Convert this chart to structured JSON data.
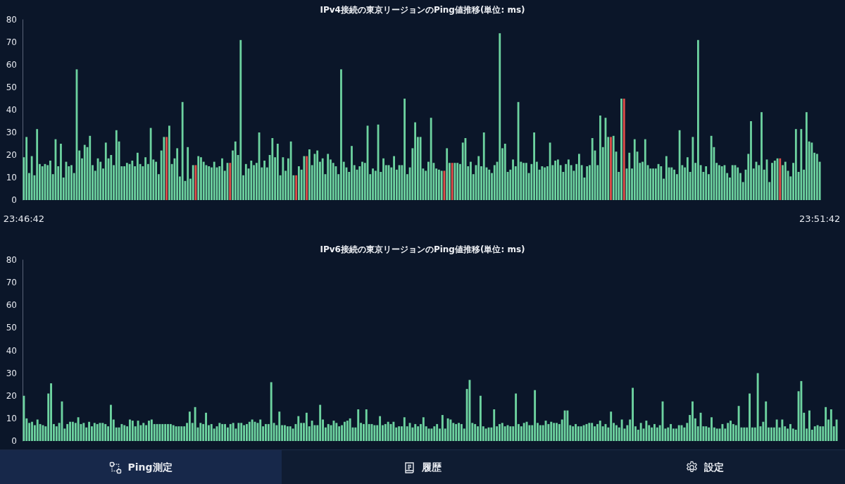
{
  "chart_data": [
    {
      "type": "bar",
      "title": "IPv4接続の東京リージョンのPing値推移(単位: ms)",
      "categories": [
        "23:46:42",
        null,
        null,
        null,
        null,
        null,
        null,
        null,
        null,
        null,
        null,
        null,
        null,
        null,
        null,
        null,
        null,
        null,
        null,
        null,
        null,
        null,
        null,
        null,
        null,
        null,
        null,
        null,
        null,
        null,
        null,
        null,
        null,
        null,
        null,
        null,
        null,
        null,
        null,
        null,
        null,
        null,
        null,
        null,
        null,
        null,
        null,
        null,
        null,
        null,
        null,
        null,
        null,
        null,
        null,
        null,
        null,
        null,
        null,
        null,
        null,
        null,
        null,
        null,
        null,
        null,
        null,
        null,
        null,
        null,
        null,
        null,
        null,
        null,
        null,
        null,
        null,
        null,
        null,
        null,
        null,
        null,
        null,
        null,
        null,
        null,
        null,
        null,
        null,
        null,
        null,
        null,
        null,
        null,
        null,
        null,
        null,
        null,
        null,
        null,
        null,
        null,
        null,
        null,
        null,
        null,
        null,
        null,
        null,
        null,
        null,
        null,
        null,
        null,
        null,
        null,
        null,
        null,
        null,
        null,
        null,
        null,
        null,
        null,
        null,
        null,
        null,
        null,
        null,
        null,
        null,
        null,
        null,
        null,
        null,
        null,
        null,
        null,
        null,
        null,
        null,
        null,
        null,
        null,
        null,
        null,
        null,
        null,
        null,
        null,
        null,
        null,
        null,
        null,
        null,
        null,
        null,
        null,
        null,
        null,
        null,
        null,
        null,
        null,
        null,
        null,
        null,
        null,
        null,
        null,
        null,
        null,
        null,
        null,
        null,
        null,
        null,
        null,
        null,
        null,
        null,
        null,
        null,
        null,
        null,
        null,
        null,
        null,
        null,
        null,
        null,
        null,
        null,
        null,
        null,
        null,
        null,
        null,
        null,
        null,
        null,
        null,
        null,
        null,
        null,
        null,
        null,
        null,
        null,
        null,
        null,
        null,
        null,
        null,
        null,
        null,
        null,
        null,
        null,
        null,
        null,
        null,
        null,
        null,
        null,
        null,
        null,
        null,
        null,
        null,
        null,
        null,
        null,
        null,
        null,
        null,
        null,
        null,
        null,
        null,
        null,
        null,
        null,
        null,
        null,
        null,
        null,
        null,
        null,
        null,
        null,
        null,
        null,
        null,
        null,
        null,
        null,
        null,
        null,
        null,
        null,
        null,
        null,
        null,
        null,
        null,
        null,
        null,
        null,
        null,
        null,
        null,
        null,
        null,
        null,
        null,
        null,
        null,
        null,
        null,
        null,
        null,
        null,
        null,
        null,
        null,
        null,
        null,
        null,
        null,
        null,
        null,
        null,
        null,
        null,
        null,
        null,
        null,
        null,
        null,
        null,
        "23:51:42"
      ],
      "values": [
        19,
        28,
        12,
        19.5,
        11,
        31.5,
        16,
        15,
        16,
        15.5,
        17.5,
        11.5,
        27,
        15,
        25,
        10,
        17,
        15,
        15.5,
        12,
        58,
        22,
        18.5,
        24.5,
        23.5,
        28.5,
        15.5,
        13,
        18.5,
        17,
        14,
        25.5,
        18.5,
        20,
        15.5,
        31,
        26,
        15,
        15,
        16.5,
        16,
        17.5,
        15,
        21,
        16,
        15,
        19,
        16,
        32,
        18,
        17,
        11.5,
        22,
        28,
        28,
        33,
        16,
        18.5,
        23,
        10.5,
        43.5,
        8.5,
        23.5,
        9.5,
        15.5,
        15.5,
        19.5,
        19,
        17,
        15.5,
        15,
        14.5,
        17,
        14.5,
        15,
        18.5,
        13,
        16.5,
        16.5,
        22,
        26,
        20,
        71,
        11,
        16,
        14,
        17.5,
        15.5,
        16.5,
        30,
        14.5,
        17.5,
        14.5,
        20,
        27.5,
        19,
        25,
        11,
        19,
        13,
        18.5,
        26,
        11,
        11,
        15,
        13.5,
        19.5,
        19.5,
        22.5,
        15.5,
        20.5,
        22,
        17,
        18.5,
        11.5,
        20.5,
        18,
        16.5,
        15,
        11.5,
        58,
        17,
        14.5,
        12.5,
        24,
        15.5,
        13.5,
        15,
        17,
        16.5,
        33,
        11.5,
        14,
        13,
        33.5,
        12.5,
        18.5,
        15.5,
        15.5,
        14.5,
        19.5,
        13.5,
        15.5,
        15.5,
        45,
        11.5,
        14.5,
        23,
        34.5,
        28,
        28,
        14,
        13,
        17,
        36.5,
        16.5,
        14,
        13.5,
        13,
        13,
        23,
        16.5,
        16.5,
        16.5,
        16.5,
        16,
        25.5,
        27.5,
        15,
        17,
        11.5,
        15.5,
        19.5,
        15,
        30,
        14.5,
        13.5,
        12,
        15.5,
        17,
        74,
        23,
        25,
        12.5,
        13.5,
        18,
        15,
        43.5,
        17,
        16.5,
        16.5,
        12,
        16,
        30,
        17,
        13.5,
        15,
        14.5,
        15,
        25.5,
        15.5,
        17.5,
        18,
        15.5,
        12.5,
        16,
        18,
        15.5,
        13,
        16,
        20.5,
        15.5,
        10,
        15,
        15.5,
        27.5,
        22,
        15.5,
        37.5,
        23.5,
        36.5,
        28,
        28,
        28.5,
        21.5,
        12.5,
        45,
        45,
        14,
        21,
        14,
        27,
        21.5,
        16.5,
        17,
        27,
        15.5,
        14,
        14,
        14,
        16,
        15,
        9.5,
        19.5,
        14.5,
        14.5,
        13.5,
        11.5,
        31,
        15.5,
        14.5,
        19,
        12.5,
        28,
        16.5,
        71,
        15.5,
        12.5,
        15,
        11.5,
        28.5,
        23.5,
        16.5,
        15.5,
        15,
        15.5,
        12,
        10,
        15.5,
        15.5,
        14.5,
        12,
        8,
        13.5,
        20.5,
        35,
        14,
        17,
        15.5,
        39,
        13.5,
        18,
        8,
        16.5,
        17.5,
        18.5,
        18.5,
        15.5,
        17,
        13,
        10.5,
        16.5,
        31.5,
        12.5,
        31.5,
        13.5,
        39,
        26,
        25.5,
        21,
        20.5,
        17
      ],
      "colors": [
        "#6dd3a0",
        "#6dd3a0",
        "#6dd3a0",
        "#6dd3a0",
        "#6dd3a0",
        "#6dd3a0",
        "#6dd3a0",
        "#6dd3a0",
        "#6dd3a0",
        "#6dd3a0",
        "#6dd3a0",
        "#6dd3a0",
        "#6dd3a0",
        "#6dd3a0",
        "#6dd3a0",
        "#6dd3a0",
        "#6dd3a0",
        "#6dd3a0",
        "#6dd3a0",
        "#6dd3a0",
        "#6dd3a0",
        "#6dd3a0",
        "#6dd3a0",
        "#6dd3a0",
        "#6dd3a0",
        "#6dd3a0",
        "#6dd3a0",
        "#6dd3a0",
        "#6dd3a0",
        "#6dd3a0",
        "#6dd3a0",
        "#6dd3a0",
        "#6dd3a0",
        "#6dd3a0",
        "#6dd3a0",
        "#6dd3a0",
        "#6dd3a0",
        "#6dd3a0",
        "#6dd3a0",
        "#6dd3a0",
        "#6dd3a0",
        "#6dd3a0",
        "#6dd3a0",
        "#6dd3a0",
        "#6dd3a0",
        "#6dd3a0",
        "#6dd3a0",
        "#6dd3a0",
        "#6dd3a0",
        "#6dd3a0",
        "#6dd3a0",
        "#6dd3a0",
        "#6dd3a0",
        "#6dd3a0",
        "#e0504a",
        "#6dd3a0",
        "#6dd3a0",
        "#6dd3a0",
        "#6dd3a0",
        "#6dd3a0",
        "#6dd3a0",
        "#6dd3a0",
        "#6dd3a0",
        "#6dd3a0",
        "#6dd3a0",
        "#e0504a",
        "#6dd3a0",
        "#6dd3a0",
        "#6dd3a0",
        "#6dd3a0",
        "#6dd3a0",
        "#6dd3a0",
        "#6dd3a0",
        "#6dd3a0",
        "#6dd3a0",
        "#6dd3a0",
        "#6dd3a0",
        "#6dd3a0",
        "#e0504a",
        "#6dd3a0",
        "#6dd3a0",
        "#6dd3a0",
        "#6dd3a0",
        "#6dd3a0",
        "#6dd3a0",
        "#6dd3a0",
        "#6dd3a0",
        "#6dd3a0",
        "#6dd3a0",
        "#6dd3a0",
        "#6dd3a0",
        "#6dd3a0",
        "#6dd3a0",
        "#6dd3a0",
        "#6dd3a0",
        "#6dd3a0",
        "#6dd3a0",
        "#6dd3a0",
        "#6dd3a0",
        "#6dd3a0",
        "#6dd3a0",
        "#6dd3a0",
        "#6dd3a0",
        "#e0504a",
        "#6dd3a0",
        "#6dd3a0",
        "#6dd3a0",
        "#e0504a",
        "#6dd3a0",
        "#6dd3a0",
        "#6dd3a0",
        "#6dd3a0",
        "#6dd3a0",
        "#6dd3a0",
        "#6dd3a0",
        "#6dd3a0",
        "#6dd3a0",
        "#6dd3a0",
        "#6dd3a0",
        "#6dd3a0",
        "#6dd3a0",
        "#6dd3a0",
        "#6dd3a0",
        "#6dd3a0",
        "#6dd3a0",
        "#6dd3a0",
        "#6dd3a0",
        "#6dd3a0",
        "#6dd3a0",
        "#6dd3a0",
        "#6dd3a0",
        "#6dd3a0",
        "#6dd3a0",
        "#6dd3a0",
        "#6dd3a0",
        "#6dd3a0",
        "#6dd3a0",
        "#6dd3a0",
        "#6dd3a0",
        "#6dd3a0",
        "#6dd3a0",
        "#6dd3a0",
        "#6dd3a0",
        "#6dd3a0",
        "#6dd3a0",
        "#6dd3a0",
        "#6dd3a0",
        "#6dd3a0",
        "#6dd3a0",
        "#6dd3a0",
        "#6dd3a0",
        "#6dd3a0",
        "#6dd3a0",
        "#6dd3a0",
        "#6dd3a0",
        "#6dd3a0",
        "#6dd3a0",
        "#6dd3a0",
        "#6dd3a0",
        "#e0504a",
        "#6dd3a0",
        "#6dd3a0",
        "#e0504a",
        "#6dd3a0",
        "#6dd3a0",
        "#6dd3a0",
        "#6dd3a0",
        "#6dd3a0",
        "#6dd3a0",
        "#6dd3a0",
        "#6dd3a0",
        "#6dd3a0",
        "#6dd3a0",
        "#6dd3a0",
        "#6dd3a0",
        "#6dd3a0",
        "#6dd3a0",
        "#6dd3a0",
        "#6dd3a0",
        "#6dd3a0",
        "#6dd3a0",
        "#6dd3a0",
        "#6dd3a0",
        "#6dd3a0",
        "#6dd3a0",
        "#6dd3a0",
        "#6dd3a0",
        "#6dd3a0",
        "#6dd3a0",
        "#6dd3a0",
        "#6dd3a0",
        "#6dd3a0",
        "#6dd3a0",
        "#6dd3a0",
        "#6dd3a0",
        "#6dd3a0",
        "#6dd3a0",
        "#6dd3a0",
        "#6dd3a0",
        "#6dd3a0",
        "#6dd3a0",
        "#6dd3a0",
        "#6dd3a0",
        "#6dd3a0",
        "#6dd3a0",
        "#6dd3a0",
        "#6dd3a0",
        "#6dd3a0",
        "#6dd3a0",
        "#6dd3a0",
        "#6dd3a0",
        "#6dd3a0",
        "#6dd3a0",
        "#6dd3a0",
        "#6dd3a0",
        "#6dd3a0",
        "#6dd3a0",
        "#6dd3a0",
        "#6dd3a0",
        "#6dd3a0",
        "#6dd3a0",
        "#6dd3a0",
        "#e0504a",
        "#6dd3a0",
        "#6dd3a0",
        "#6dd3a0",
        "#6dd3a0",
        "#e0504a",
        "#6dd3a0",
        "#6dd3a0",
        "#6dd3a0",
        "#6dd3a0",
        "#6dd3a0",
        "#6dd3a0",
        "#6dd3a0",
        "#6dd3a0",
        "#6dd3a0",
        "#6dd3a0",
        "#6dd3a0",
        "#6dd3a0",
        "#6dd3a0",
        "#6dd3a0",
        "#6dd3a0",
        "#6dd3a0",
        "#6dd3a0",
        "#6dd3a0",
        "#6dd3a0",
        "#6dd3a0",
        "#6dd3a0",
        "#6dd3a0",
        "#6dd3a0",
        "#6dd3a0",
        "#6dd3a0",
        "#6dd3a0",
        "#6dd3a0",
        "#6dd3a0",
        "#6dd3a0",
        "#6dd3a0",
        "#6dd3a0",
        "#6dd3a0",
        "#6dd3a0",
        "#6dd3a0",
        "#6dd3a0",
        "#6dd3a0",
        "#6dd3a0",
        "#6dd3a0",
        "#6dd3a0",
        "#6dd3a0",
        "#6dd3a0",
        "#6dd3a0",
        "#6dd3a0",
        "#6dd3a0",
        "#6dd3a0",
        "#6dd3a0",
        "#6dd3a0",
        "#6dd3a0",
        "#6dd3a0",
        "#6dd3a0",
        "#6dd3a0",
        "#6dd3a0",
        "#6dd3a0",
        "#6dd3a0",
        "#6dd3a0",
        "#6dd3a0",
        "#6dd3a0",
        "#6dd3a0",
        "#e0504a",
        "#6dd3a0",
        "#6dd3a0",
        "#6dd3a0",
        "#6dd3a0",
        "#6dd3a0",
        "#6dd3a0",
        "#6dd3a0",
        "#6dd3a0",
        "#6dd3a0",
        "#6dd3a0",
        "#6dd3a0",
        "#6dd3a0",
        "#6dd3a0",
        "#6dd3a0",
        "#6dd3a0"
      ],
      "ylim": [
        0,
        80
      ],
      "yticks": [
        0,
        10,
        20,
        30,
        40,
        50,
        60,
        70,
        80
      ]
    },
    {
      "type": "bar",
      "title": "IPv6接続の東京リージョンのPing値推移(単位: ms)",
      "categories": [
        null,
        null,
        null,
        null,
        null,
        null,
        null,
        null,
        null,
        null,
        null,
        null,
        null,
        null,
        null,
        null,
        null,
        null,
        null,
        null,
        null,
        null,
        null,
        null,
        null,
        null,
        null,
        null,
        null,
        null,
        null,
        null,
        null,
        null,
        null,
        null,
        null,
        null,
        null,
        null,
        null,
        null,
        null,
        null,
        null,
        null,
        null,
        null,
        null,
        null,
        null,
        null,
        null,
        null,
        null,
        null,
        null,
        null,
        null,
        null,
        null,
        null,
        null,
        null,
        null,
        null,
        null,
        null,
        null,
        null,
        null,
        null,
        null,
        null,
        null,
        null,
        null,
        null,
        null,
        null,
        null,
        null,
        null,
        null,
        null,
        null,
        null,
        null,
        null,
        null,
        null,
        null,
        null,
        null,
        null,
        null,
        null,
        null,
        null,
        null,
        null,
        null,
        null,
        null,
        null,
        null,
        null,
        null,
        null,
        null,
        null,
        null,
        null,
        null,
        null,
        null,
        null,
        null,
        null,
        null,
        null,
        null,
        null,
        null,
        null,
        null,
        null,
        null,
        null,
        null,
        null,
        null,
        null,
        null,
        null,
        null,
        null,
        null,
        null,
        null,
        null,
        null,
        null,
        null,
        null,
        null,
        null,
        null,
        null,
        null,
        null,
        null,
        null,
        null,
        null,
        null,
        null,
        null,
        null,
        null,
        null,
        null,
        null,
        null,
        null,
        null,
        null,
        null,
        null,
        null,
        null,
        null,
        null,
        null,
        null,
        null,
        null,
        null,
        null,
        null,
        null,
        null,
        null,
        null,
        null,
        null,
        null,
        null,
        null,
        null,
        null,
        null,
        null,
        null,
        null,
        null,
        null,
        null,
        null,
        null,
        null,
        null,
        null,
        null,
        null,
        null,
        null,
        null,
        null,
        null,
        null,
        null,
        null,
        null,
        null,
        null,
        null,
        null,
        null,
        null,
        null,
        null,
        null,
        null,
        null,
        null,
        null,
        null,
        null,
        null,
        null,
        null,
        null,
        null,
        null,
        null,
        null,
        null,
        null,
        null,
        null,
        null,
        null,
        null,
        null,
        null,
        null,
        null,
        null,
        null,
        null,
        null,
        null,
        null,
        null,
        null,
        null,
        null,
        null,
        null,
        null,
        null,
        null,
        null,
        null,
        null,
        null,
        null,
        null,
        null,
        null,
        null,
        null,
        null,
        null,
        null,
        null,
        null,
        null,
        null,
        null,
        null,
        null,
        null,
        null,
        null,
        null,
        null,
        null,
        null,
        null,
        null,
        null,
        null,
        null,
        null,
        null,
        null,
        null,
        null
      ],
      "values": [
        20,
        10,
        8,
        8.5,
        7,
        9.5,
        7.5,
        7,
        6.5,
        21,
        25.5,
        7.5,
        6.5,
        8,
        17.5,
        5.5,
        7.5,
        8.5,
        8.5,
        8,
        10.5,
        7.5,
        8,
        6,
        8.5,
        6.5,
        8,
        7.5,
        8,
        8,
        7.5,
        6.5,
        16,
        9.5,
        6,
        6,
        7.5,
        7,
        6.5,
        9.5,
        9,
        6.5,
        9,
        7,
        8,
        7,
        9,
        9.5,
        7.5,
        7.5,
        7.5,
        7.5,
        7.5,
        7.5,
        7.5,
        7,
        6.5,
        6.5,
        6.5,
        6.5,
        8,
        13,
        8,
        15,
        6,
        8,
        7.5,
        12.5,
        7,
        7.5,
        5.5,
        6.5,
        8,
        7.5,
        7.5,
        6,
        7.5,
        8,
        5.5,
        8,
        8,
        7,
        7.5,
        8.5,
        9.5,
        8.5,
        8,
        9.5,
        6.5,
        7.5,
        7.5,
        26,
        8,
        7,
        13,
        7,
        7,
        6.5,
        6.5,
        5.5,
        7.5,
        11,
        8,
        8,
        12.5,
        6.5,
        9,
        7,
        7,
        16,
        9.5,
        6,
        7.5,
        7,
        9,
        8,
        6.5,
        7,
        8.5,
        9,
        10,
        6,
        6,
        14,
        8,
        7.5,
        14,
        7.5,
        7.5,
        7,
        7,
        11,
        7,
        7.5,
        8.5,
        7.5,
        8.5,
        6,
        6.5,
        6.5,
        10.5,
        6.5,
        8,
        6,
        7.5,
        6.5,
        7.5,
        10.5,
        6.5,
        5.5,
        5.5,
        6.5,
        7.5,
        5.5,
        11.5,
        5.5,
        10,
        9.5,
        8,
        7.5,
        8,
        7.5,
        5.5,
        23,
        27,
        8,
        7.5,
        6.5,
        20,
        6.5,
        5.5,
        6,
        6,
        14,
        6.5,
        7.5,
        8,
        6.5,
        7,
        6.5,
        6.5,
        21,
        7.5,
        6.5,
        8,
        8.5,
        7,
        7,
        22.5,
        8,
        7,
        7,
        9,
        7.5,
        8.5,
        8,
        8,
        7.5,
        9.5,
        13.5,
        13.5,
        7,
        6.5,
        7.5,
        6.5,
        6.5,
        7,
        7.5,
        8,
        8,
        6.5,
        7.5,
        9,
        6.5,
        7.5,
        6,
        13,
        8,
        7,
        6,
        9.5,
        5.5,
        7,
        9.5,
        23.5,
        6.5,
        5,
        8,
        5.5,
        9,
        7,
        6,
        7.5,
        6,
        7,
        17.5,
        5.5,
        6,
        7.5,
        5.5,
        5.5,
        7,
        7,
        6,
        8,
        11.5,
        17.5,
        10,
        6.5,
        12.5,
        6.5,
        6.5,
        6,
        10.5,
        6,
        5.5,
        5.5,
        7.5,
        5.5,
        8,
        9,
        7.5,
        7,
        15.5,
        6,
        6,
        6,
        21,
        6,
        6,
        30,
        6.5,
        8.5,
        17.5,
        6,
        6,
        6,
        9.5,
        6,
        9.5,
        6.5,
        5.5,
        7.5,
        5.5,
        5,
        22,
        26.5,
        12.5,
        5.5,
        13.5,
        5,
        6.5,
        7,
        6.5,
        6.5,
        15,
        9.5,
        14,
        6.5,
        9.5
      ],
      "color": "#6dd3a0",
      "ylim": [
        0,
        80
      ],
      "yticks": [
        0,
        10,
        20,
        30,
        40,
        50,
        60,
        70,
        80
      ],
      "tick_labels": "y"
    },
    {
      "type": "other",
      "annotations": [
        "Ping測定",
        "履歴",
        "設定"
      ]
    }
  ]
}
